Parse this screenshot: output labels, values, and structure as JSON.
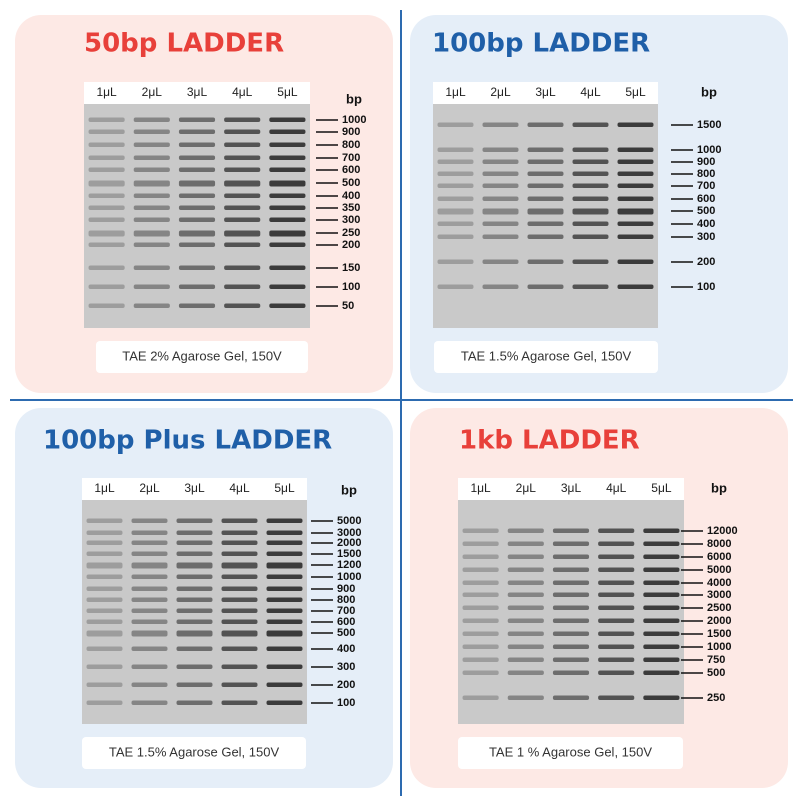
{
  "panels": [
    {
      "title": "50bp LADDER",
      "lanes": [
        "1μL",
        "2μL",
        "3μL",
        "4μL",
        "5μL"
      ],
      "unit": "bp",
      "sizes": [
        "1000",
        "900",
        "800",
        "700",
        "600",
        {
          "text": "500",
          "bold": true
        },
        "400",
        "350",
        "300",
        {
          "text": "250",
          "bold": true
        },
        "200",
        "150",
        "100",
        "50"
      ],
      "caption": "TAE 2% Agarose Gel, 150V"
    },
    {
      "title": "100bp LADDER",
      "lanes": [
        "1μL",
        "2μL",
        "3μL",
        "4μL",
        "5μL"
      ],
      "unit": "bp",
      "sizes": [
        "1500",
        "1000",
        "900",
        "800",
        "700",
        "600",
        {
          "text": "500",
          "bold": true
        },
        "400",
        "300",
        "200",
        "100"
      ],
      "caption": "TAE 1.5% Agarose Gel, 150V"
    },
    {
      "title": "100bp Plus LADDER",
      "lanes": [
        "1μL",
        "2μL",
        "3μL",
        "4μL",
        "5μL"
      ],
      "unit": "bp",
      "sizes": [
        "5000",
        "3000",
        "2000",
        "1500",
        {
          "text": "1200",
          "bold": true
        },
        "1000",
        "900",
        "800",
        "700",
        "600",
        {
          "text": "500",
          "bold": true
        },
        "400",
        "300",
        "200",
        "100"
      ],
      "caption": "TAE 1.5% Agarose Gel, 150V"
    },
    {
      "title": "1kb LADDER",
      "lanes": [
        "1μL",
        "2μL",
        "3μL",
        "4μL",
        "5μL"
      ],
      "unit": "bp",
      "sizes": [
        "12000",
        "8000",
        "6000",
        "5000",
        "4000",
        "3000",
        "2500",
        "2000",
        "1500",
        "1000",
        "750",
        "500",
        "250"
      ],
      "caption": "TAE 1 % Agarose Gel, 150V"
    }
  ]
}
